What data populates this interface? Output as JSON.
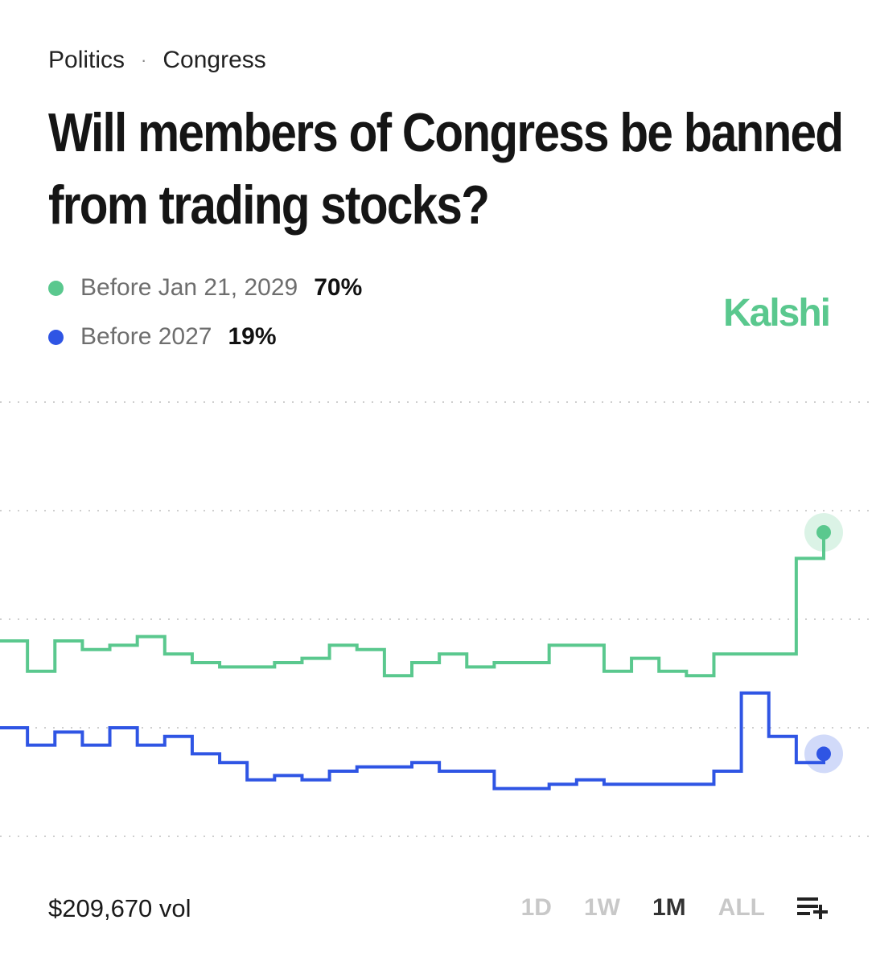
{
  "breadcrumb": {
    "category": "Politics",
    "separator": "·",
    "subcategory": "Congress"
  },
  "title": "Will members of Congress be banned from trading stocks?",
  "brand": {
    "name": "Kalshi",
    "color": "#5ac88e"
  },
  "legend": [
    {
      "label": "Before Jan 21, 2029",
      "value": "70%",
      "color": "#5ac88e"
    },
    {
      "label": "Before 2027",
      "value": "19%",
      "color": "#2f55e4"
    }
  ],
  "volume": "$209,670 vol",
  "ranges": [
    "1D",
    "1W",
    "1M",
    "ALL"
  ],
  "active_range": "1M",
  "icons": {
    "customize": "playlist-add-icon"
  },
  "chart_data": {
    "type": "line",
    "step": true,
    "x": [
      0,
      1,
      2,
      3,
      4,
      5,
      6,
      7,
      8,
      9,
      10,
      11,
      12,
      13,
      14,
      15,
      16,
      17,
      18,
      19,
      20,
      21,
      22,
      23,
      24,
      25,
      26,
      27,
      28,
      29,
      30
    ],
    "ylim": [
      0,
      100
    ],
    "grid": "dotted horizontal",
    "series": [
      {
        "name": "Before Jan 21, 2029",
        "color": "#5ac88e",
        "values": [
          45,
          38,
          45,
          43,
          44,
          46,
          42,
          40,
          39,
          39,
          40,
          41,
          44,
          43,
          37,
          40,
          42,
          39,
          40,
          40,
          44,
          44,
          38,
          41,
          38,
          37,
          42,
          42,
          42,
          64,
          70
        ]
      },
      {
        "name": "Before 2027",
        "color": "#2f55e4",
        "values": [
          25,
          21,
          24,
          21,
          25,
          21,
          23,
          19,
          17,
          13,
          14,
          13,
          15,
          16,
          16,
          17,
          15,
          15,
          11,
          11,
          12,
          13,
          12,
          12,
          12,
          12,
          15,
          33,
          23,
          17,
          19
        ]
      }
    ]
  }
}
